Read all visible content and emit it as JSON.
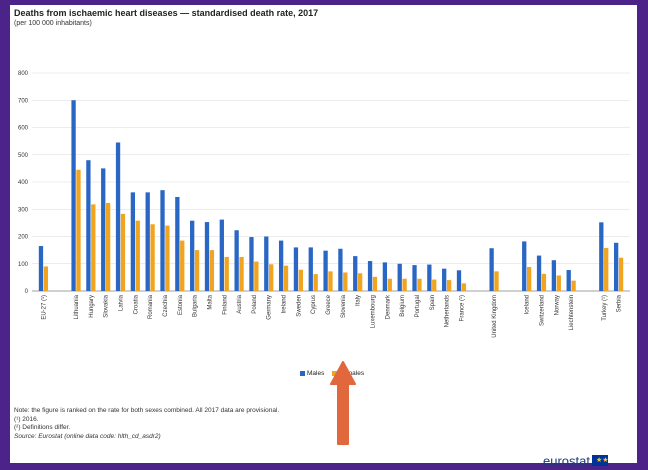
{
  "chart_data": {
    "type": "bar",
    "title": "Deaths from ischaemic heart diseases — standardised death rate, 2017",
    "subtitle": "(per 100 000 inhabitants)",
    "ylim": [
      0,
      800
    ],
    "yticks": [
      "0",
      "100",
      "200",
      "300",
      "400",
      "500",
      "600",
      "700",
      "800"
    ],
    "grid": true,
    "legend_position": "bottom",
    "groups": [
      [
        "EU-27 (¹)"
      ],
      [
        "Lithuania",
        "Hungary",
        "Slovakia",
        "Latvia",
        "Croatia",
        "Romania",
        "Czechia",
        "Estonia",
        "Bulgaria",
        "Malta",
        "Finland",
        "Austria",
        "Poland",
        "Germany",
        "Ireland",
        "Sweden",
        "Cyprus",
        "Greece",
        "Slovenia",
        "Italy",
        "Luxembourg",
        "Denmark",
        "Belgium",
        "Portugal",
        "Spain",
        "Netherlands",
        "France (¹)"
      ],
      [
        "United Kingdom"
      ],
      [
        "Iceland",
        "Switzerland",
        "Norway",
        "Liechtenstein"
      ],
      [
        "Turkey (¹)",
        "Serbia"
      ]
    ],
    "series": [
      {
        "name": "Males",
        "color": "#2a67c4",
        "values": [
          [
            165
          ],
          [
            700,
            480,
            450,
            545,
            362,
            362,
            370,
            345,
            258,
            253,
            262,
            223,
            198,
            200,
            185,
            160,
            160,
            148,
            155,
            128,
            110,
            105,
            100,
            95,
            97,
            82,
            76
          ],
          [
            157
          ],
          [
            182,
            130,
            113,
            77
          ],
          [
            252,
            177
          ]
        ]
      },
      {
        "name": "Females",
        "color": "#f0a41f",
        "values": [
          [
            90
          ],
          [
            445,
            318,
            323,
            283,
            258,
            245,
            240,
            185,
            150,
            150,
            125,
            125,
            108,
            98,
            93,
            78,
            62,
            72,
            68,
            65,
            52,
            45,
            45,
            45,
            42,
            40,
            28
          ],
          [
            72
          ],
          [
            88,
            63,
            57,
            38
          ],
          [
            158,
            122
          ]
        ]
      }
    ]
  },
  "legend": {
    "males_label": "Males",
    "females_label": "Females"
  },
  "notes": {
    "line1": "Note: the figure is ranked on the rate for both sexes combined. All 2017 data are provisional.",
    "line2": "(¹) 2016.",
    "line3": "(²) Definitions differ.",
    "line4": "Source: Eurostat (online data code: hlth_cd_asdr2)"
  },
  "brand": {
    "name": "eurostat"
  },
  "colors": {
    "frame": "#4b2389",
    "arrow": "#e0683c"
  }
}
